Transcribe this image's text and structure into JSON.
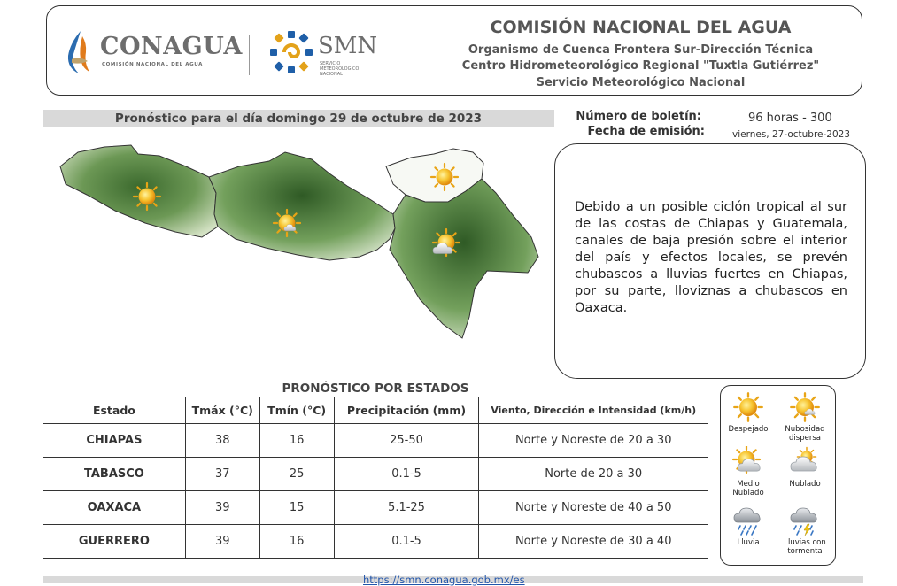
{
  "header": {
    "conagua_logo_text": "CONAGUA",
    "conagua_logo_subtitle": "COMISIÓN NACIONAL DEL AGUA",
    "smn_logo_text": "SMN",
    "smn_logo_subtitle": [
      "SERVICIO",
      "METEOROLÓGICO",
      "NACIONAL"
    ],
    "title": "COMISIÓN NACIONAL DEL AGUA",
    "lines": [
      "Organismo de Cuenca Frontera Sur-Dirección Técnica",
      "Centro Hidrometeorológico Regional \"Tuxtla Gutiérrez\"",
      "Servicio Meteorológico Nacional"
    ]
  },
  "forecast_date": "Pronóstico para el día  domingo 29 de octubre de 2023",
  "bulletin": {
    "number_label": "Número de boletín:",
    "number_value": "96 horas - 300",
    "date_label": "Fecha de emisión:",
    "date_value": "viernes, 27-octubre-2023"
  },
  "description": "Debido a un posible ciclón tropical al sur de las costas de Chiapas y Guatemala, canales de baja presión sobre el interior del país y efectos locales, se prevén chubascos a lluvias fuertes en Chiapas, por su parte, lloviznas a chubascos en Oaxaca.",
  "table": {
    "title": "PRONÓSTICO  POR ESTADOS",
    "headers": [
      "Estado",
      "Tmáx (°C)",
      "Tmín (°C)",
      "Precipitación (mm)",
      "Viento, Dirección e Intensidad (km/h)"
    ],
    "rows": [
      [
        "CHIAPAS",
        "38",
        "16",
        "25-50",
        "Norte y Noreste de 20 a 30"
      ],
      [
        "TABASCO",
        "37",
        "25",
        "0.1-5",
        "Norte de 20 a 30"
      ],
      [
        "OAXACA",
        "39",
        "15",
        "5.1-25",
        "Norte y Noreste de 40 a 50"
      ],
      [
        "GUERRERO",
        "39",
        "16",
        "0.1-5",
        "Norte y Noreste de 30 a 40"
      ]
    ]
  },
  "legend": [
    {
      "label": "Despejado",
      "icon": "sun-icon"
    },
    {
      "label": "Nubosidad dispersa",
      "icon": "sun-scattered-clouds-icon"
    },
    {
      "label": "Medio Nublado",
      "icon": "sun-partly-cloudy-icon"
    },
    {
      "label": "Nublado",
      "icon": "cloudy-icon"
    },
    {
      "label": "Lluvia",
      "icon": "rain-icon"
    },
    {
      "label": "Lluvias con tormenta",
      "icon": "thunderstorm-icon"
    }
  ],
  "map_icons": [
    {
      "region": "Guerrero",
      "icon": "sun-icon"
    },
    {
      "region": "Oaxaca",
      "icon": "sun-scattered-clouds-icon"
    },
    {
      "region": "Tabasco",
      "icon": "sun-icon"
    },
    {
      "region": "Chiapas",
      "icon": "sun-partly-cloudy-icon"
    }
  ],
  "footer": {
    "link": "https://smn.conagua.gob.mx/es"
  },
  "colors": {
    "map_green": "#4f7d3c",
    "sun": "#f3b21e",
    "bar_gray": "#d9d9d9"
  }
}
